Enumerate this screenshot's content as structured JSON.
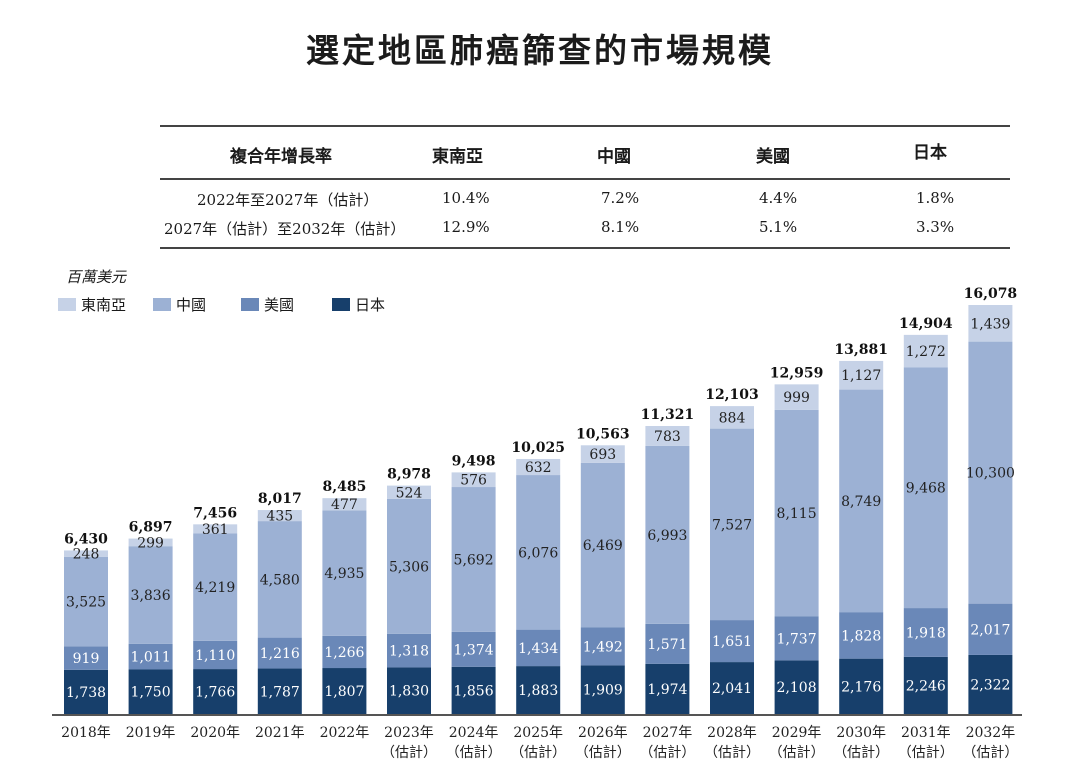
{
  "title": "選定地區肺癌篩查的市場規模",
  "cagr_table": {
    "headers": [
      "複合年增長率",
      "東南亞",
      "中國",
      "美國",
      "日本"
    ],
    "rows": [
      {
        "period": "2022年至2027年（估計）",
        "values": [
          "10.4%",
          "7.2%",
          "4.4%",
          "1.8%"
        ]
      },
      {
        "period": "2027年（估計）至2032年（估計）",
        "values": [
          "12.9%",
          "8.1%",
          "5.1%",
          "3.3%"
        ]
      }
    ]
  },
  "chart_data": {
    "type": "bar",
    "stacked": true,
    "title": "選定地區肺癌篩查的市場規模",
    "ylabel": "百萬美元",
    "xlabel": "",
    "ylim": [
      0,
      16078
    ],
    "grid": false,
    "legend_position": "top-left",
    "categories": [
      "2018年",
      "2019年",
      "2020年",
      "2021年",
      "2022年",
      "2023年\n（估計）",
      "2024年\n（估計）",
      "2025年\n（估計）",
      "2026年\n（估計）",
      "2027年\n（估計）",
      "2028年\n（估計）",
      "2029年\n（估計）",
      "2030年\n（估計）",
      "2031年\n（估計）",
      "2032年\n（估計）"
    ],
    "category_lines": [
      [
        "2018年",
        ""
      ],
      [
        "2019年",
        ""
      ],
      [
        "2020年",
        ""
      ],
      [
        "2021年",
        ""
      ],
      [
        "2022年",
        ""
      ],
      [
        "2023年",
        "（估計）"
      ],
      [
        "2024年",
        "（估計）"
      ],
      [
        "2025年",
        "（估計）"
      ],
      [
        "2026年",
        "（估計）"
      ],
      [
        "2027年",
        "（估計）"
      ],
      [
        "2028年",
        "（估計）"
      ],
      [
        "2029年",
        "（估計）"
      ],
      [
        "2030年",
        "（估計）"
      ],
      [
        "2031年",
        "（估計）"
      ],
      [
        "2032年",
        "（估計）"
      ]
    ],
    "series": [
      {
        "name": "日本",
        "color": "#173f6b",
        "label_color": "#ffffff",
        "values": [
          1738,
          1750,
          1766,
          1787,
          1807,
          1830,
          1856,
          1883,
          1909,
          1974,
          2041,
          2108,
          2176,
          2246,
          2322
        ],
        "labels": [
          "1,738",
          "1,750",
          "1,766",
          "1,787",
          "1,807",
          "1,830",
          "1,856",
          "1,883",
          "1,909",
          "1,974",
          "2,041",
          "2,108",
          "2,176",
          "2,246",
          "2,322"
        ]
      },
      {
        "name": "美國",
        "color": "#6a88b8",
        "label_color": "#ffffff",
        "values": [
          919,
          1011,
          1110,
          1216,
          1266,
          1318,
          1374,
          1434,
          1492,
          1571,
          1651,
          1737,
          1828,
          1918,
          2017
        ],
        "labels": [
          "919",
          "1,011",
          "1,110",
          "1,216",
          "1,266",
          "1,318",
          "1,374",
          "1,434",
          "1,492",
          "1,571",
          "1,651",
          "1,737",
          "1,828",
          "1,918",
          "2,017"
        ]
      },
      {
        "name": "中國",
        "color": "#9cb1d4",
        "label_color": "#222222",
        "values": [
          3525,
          3836,
          4219,
          4580,
          4935,
          5306,
          5692,
          6076,
          6469,
          6993,
          7527,
          8115,
          8749,
          9468,
          10300
        ],
        "labels": [
          "3,525",
          "3,836",
          "4,219",
          "4,580",
          "4,935",
          "5,306",
          "5,692",
          "6,076",
          "6,469",
          "6,993",
          "7,527",
          "8,115",
          "8,749",
          "9,468",
          "10,300"
        ]
      },
      {
        "name": "東南亞",
        "color": "#c6d2e7",
        "label_color": "#222222",
        "values": [
          248,
          299,
          361,
          435,
          477,
          524,
          576,
          632,
          693,
          783,
          884,
          999,
          1127,
          1272,
          1439
        ],
        "labels": [
          "248",
          "299",
          "361",
          "435",
          "477",
          "524",
          "576",
          "632",
          "693",
          "783",
          "884",
          "999",
          "1,127",
          "1,272",
          "1,439"
        ]
      }
    ],
    "totals": [
      6430,
      6897,
      7456,
      8017,
      8485,
      8978,
      9498,
      10025,
      10563,
      11321,
      12103,
      12959,
      13881,
      14904,
      16078
    ],
    "total_labels": [
      "6,430",
      "6,897",
      "7,456",
      "8,017",
      "8,485",
      "8,978",
      "9,498",
      "10,025",
      "10,563",
      "11,321",
      "12,103",
      "12,959",
      "13,881",
      "14,904",
      "16,078"
    ]
  },
  "legend": [
    {
      "name": "東南亞",
      "color": "#c6d2e7"
    },
    {
      "name": "中國",
      "color": "#9cb1d4"
    },
    {
      "name": "美國",
      "color": "#6a88b8"
    },
    {
      "name": "日本",
      "color": "#173f6b"
    }
  ]
}
